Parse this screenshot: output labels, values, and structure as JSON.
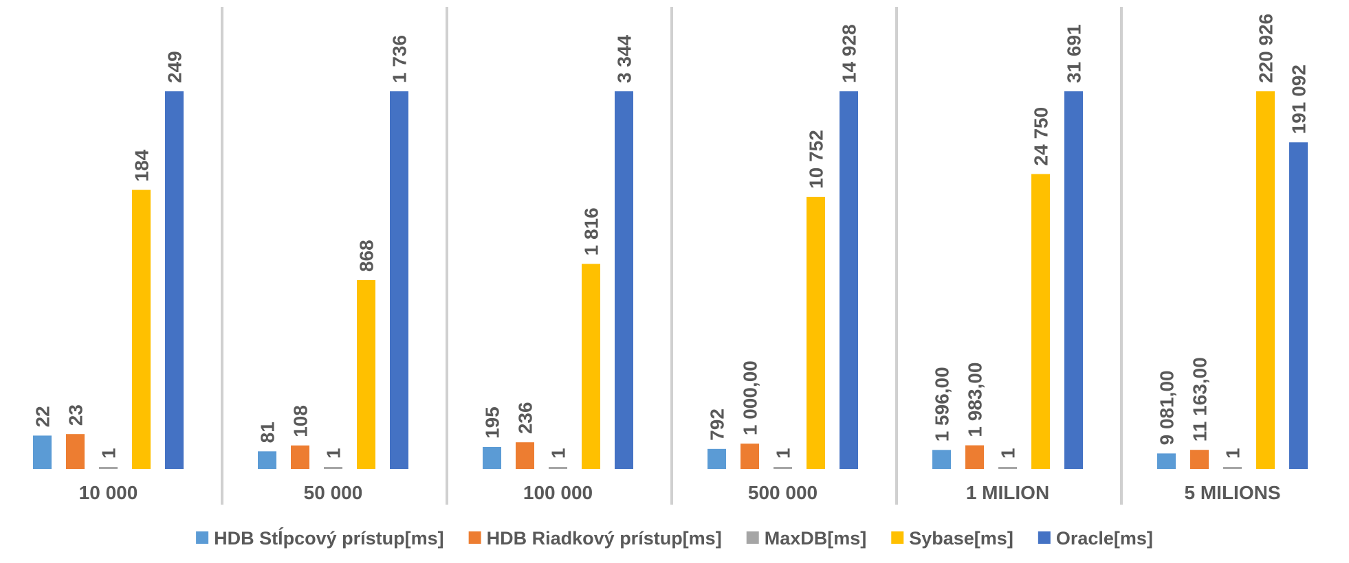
{
  "chart_data": {
    "type": "bar",
    "subplots": "one panel per category, each with its own y scale",
    "categories": [
      "10 000",
      "50 000",
      "100 000",
      "500 000",
      "1 MILION",
      "5 MILIONS"
    ],
    "series": [
      {
        "name": "HDB Stĺpcový prístup[ms]",
        "color": "#5b9bd5",
        "values": [
          22,
          81,
          195,
          792,
          1596,
          9081
        ],
        "labels": [
          "22",
          "81",
          "195",
          "792",
          "1 596,00",
          "9 081,00"
        ]
      },
      {
        "name": "HDB Riadkový prístup[ms]",
        "color": "#ed7d31",
        "values": [
          23,
          108,
          236,
          1000,
          1983,
          11163
        ],
        "labels": [
          "23",
          "108",
          "236",
          "1 000,00",
          "1 983,00",
          "11 163,00"
        ]
      },
      {
        "name": "MaxDB[ms]",
        "color": "#a5a5a5",
        "values": [
          1,
          1,
          1,
          1,
          1,
          1
        ],
        "labels": [
          "1",
          "1",
          "1",
          "1",
          "1",
          "1"
        ]
      },
      {
        "name": "Sybase[ms]",
        "color": "#ffc000",
        "values": [
          184,
          868,
          1816,
          10752,
          24750,
          220926
        ],
        "labels": [
          "184",
          "868",
          "1 816",
          "10 752",
          "24 750",
          "220 926"
        ]
      },
      {
        "name": "Oracle[ms]",
        "color": "#4472c4",
        "values": [
          249,
          1736,
          3344,
          14928,
          31691,
          191092
        ],
        "labels": [
          "249",
          "1 736",
          "3 344",
          "14 928",
          "31 691",
          "191 092"
        ]
      }
    ],
    "title": "",
    "xlabel": "",
    "ylabel": "",
    "grid": false,
    "legend_position": "bottom"
  }
}
